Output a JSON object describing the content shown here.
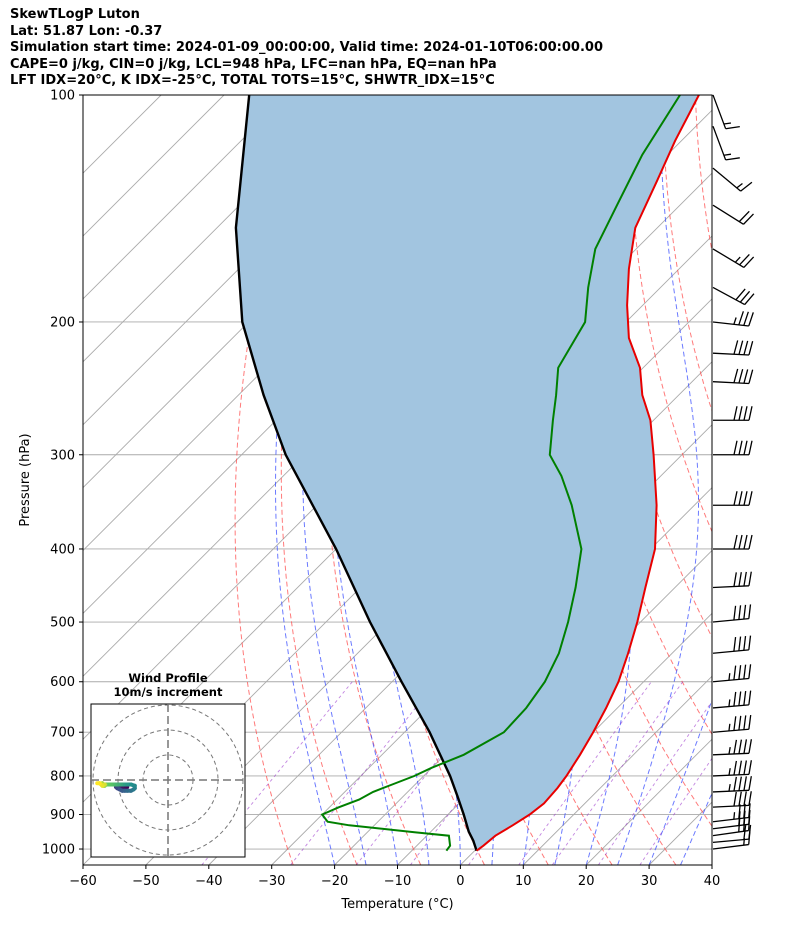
{
  "header": {
    "title": "SkewTLogP Luton",
    "location": "Lat: 51.87   Lon: -0.37",
    "times": "Simulation start time: 2024-01-09_00:00:00, Valid time: 2024-01-10T06:00:00.00",
    "indices_1": "CAPE=0 j/kg, CIN=0 j/kg, LCL=948 hPa, LFC=nan hPa, EQ=nan hPa",
    "indices_2": "LFT IDX=20$^\\circ$C, K IDX=-25$^\\circ$C, TOTAL TOTS=15$^\\circ$C, SHWTR_IDX=15$^\\circ$C"
  },
  "colors": {
    "temperature": "#e80000",
    "dewpoint": "#008000",
    "parcel": "#000000",
    "cape_fill": "#a2c5e0",
    "dry_adiabat": "#ff4d4d",
    "moist_adiabat": "#3a4dff",
    "mixing_ratio": "#9a33cc",
    "isotherm": "#aaaaaa"
  },
  "chart_data": [
    {
      "type": "line",
      "subtype": "skew-t log-p",
      "xlabel": "Temperature ($^\\circ$C)",
      "ylabel": "Pressure (hPa)",
      "xlim": [
        -60,
        40
      ],
      "ylim": [
        1050,
        100
      ],
      "yscale": "log",
      "x_ticks": [
        "−60",
        "−50",
        "−40",
        "−30",
        "−20",
        "−10",
        "0",
        "10",
        "20",
        "30",
        "40"
      ],
      "y_ticks": [
        "100",
        "200",
        "300",
        "400",
        "500",
        "600",
        "700",
        "800",
        "900",
        "1000"
      ],
      "grid": true,
      "series": [
        {
          "role": "temperature",
          "pressure": [
            1005,
            990,
            960,
            930,
            900,
            870,
            830,
            800,
            750,
            700,
            650,
            600,
            550,
            500,
            450,
            400,
            350,
            300,
            270,
            250,
            230,
            210,
            190,
            170,
            150,
            130,
            115,
            100
          ],
          "temperature": [
            0.3,
            0.6,
            0.9,
            2.0,
            3.0,
            3.5,
            3.2,
            2.7,
            1.5,
            0.0,
            -1.8,
            -4.0,
            -7.0,
            -10.5,
            -14.7,
            -19.3,
            -26.0,
            -34.5,
            -40.5,
            -45.8,
            -50.5,
            -57.0,
            -62.5,
            -68.0,
            -73.5,
            -77.5,
            -81.0,
            -84.5
          ]
        },
        {
          "role": "dewpoint",
          "pressure": [
            1005,
            990,
            960,
            950,
            930,
            920,
            900,
            880,
            860,
            840,
            820,
            800,
            780,
            750,
            700,
            650,
            600,
            550,
            500,
            450,
            400,
            350,
            320,
            300,
            270,
            250,
            230,
            200,
            180,
            160,
            140,
            120,
            100
          ],
          "temperature": [
            -4.5,
            -4.7,
            -6.5,
            -12.5,
            -24.0,
            -28.0,
            -30.0,
            -28.5,
            -26.5,
            -25.5,
            -23.5,
            -21.5,
            -20.0,
            -17.0,
            -14.2,
            -14.5,
            -15.7,
            -18.0,
            -21.5,
            -25.8,
            -31.0,
            -39.5,
            -45.8,
            -51.0,
            -56.0,
            -59.5,
            -63.5,
            -66.5,
            -71.5,
            -76.5,
            -80.0,
            -84.0,
            -87.5
          ]
        },
        {
          "role": "parcel",
          "pressure": [
            1005,
            975,
            948,
            900,
            850,
            800,
            700,
            600,
            500,
            400,
            300,
            250,
            200,
            150,
            100
          ],
          "temperature": [
            0.3,
            -1.8,
            -4.0,
            -7.5,
            -11.5,
            -15.8,
            -26.0,
            -38.5,
            -53.0,
            -70.0,
            -93.0,
            -106.0,
            -121.0,
            -137.0,
            -156.0
          ]
        }
      ],
      "wind_barbs": {
        "pressure": [
          1000,
          980,
          960,
          940,
          920,
          880,
          840,
          800,
          750,
          700,
          650,
          600,
          550,
          500,
          450,
          400,
          350,
          300,
          270,
          240,
          220,
          200,
          180,
          160,
          140,
          125,
          110,
          100
        ],
        "u": [
          8,
          11,
          14,
          16,
          17,
          20,
          22,
          23,
          24,
          24,
          23,
          22,
          21,
          21,
          21,
          21,
          21,
          21,
          20,
          20,
          20,
          18,
          13,
          10,
          8,
          6,
          3,
          3
        ],
        "v": [
          1,
          1,
          2,
          2,
          2,
          1,
          1,
          1,
          1,
          2,
          2,
          2,
          2,
          2,
          1,
          0,
          0,
          0,
          0,
          -1,
          -1,
          -2,
          -7,
          -6,
          -5,
          -5,
          -8,
          -8
        ]
      }
    },
    {
      "type": "line",
      "subtype": "hodograph",
      "title": "Wind Profile\n10m/s increment",
      "ring_increment": 10,
      "rings": [
        10,
        20,
        30
      ],
      "u": [
        -3,
        -5,
        -7,
        -9,
        -10,
        -11,
        -12,
        -11,
        -9,
        -7,
        -5,
        -3,
        0,
        2,
        3,
        3,
        0,
        -3,
        -6,
        -8,
        -10,
        -12,
        -14,
        -16,
        -18,
        -20,
        -21,
        -22,
        -23,
        -22,
        -21,
        -23,
        -25,
        -27
      ],
      "v": [
        0,
        0,
        0,
        0,
        0,
        0,
        0,
        -1,
        -2,
        -3,
        -3,
        -3,
        -3,
        -2,
        -1,
        1,
        2,
        2,
        2,
        2,
        2,
        2,
        2,
        2,
        2,
        2,
        1,
        2,
        3,
        1,
        2,
        1,
        3,
        3
      ]
    }
  ]
}
